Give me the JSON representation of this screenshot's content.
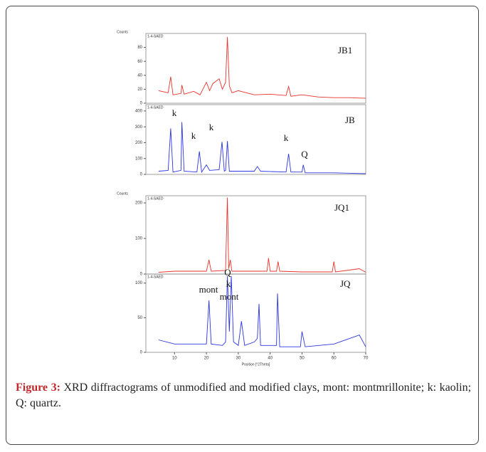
{
  "chart_data": [
    {
      "type": "line",
      "ylabel": "Counts",
      "label": "JB1",
      "x": [
        5,
        8,
        8.8,
        9.5,
        12,
        12.3,
        13,
        16,
        18,
        20,
        21,
        22,
        24,
        25,
        26,
        26.6,
        27.2,
        28,
        30,
        35,
        40,
        45,
        45.8,
        46.5,
        50,
        55,
        60,
        65,
        70
      ],
      "series": [
        {
          "name": "1-4-SAED",
          "color": "#e8322b",
          "values": [
            18,
            15,
            38,
            12,
            14,
            26,
            13,
            17,
            12,
            30,
            18,
            28,
            35,
            20,
            30,
            95,
            25,
            15,
            18,
            12,
            13,
            11,
            24,
            10,
            12,
            9,
            8,
            8,
            7
          ]
        }
      ],
      "xlim": [
        1,
        70
      ],
      "ylim": [
        0,
        100
      ],
      "yticks": [
        0,
        20,
        40,
        60,
        80
      ],
      "annotations": []
    },
    {
      "type": "line",
      "label": "JB",
      "x": [
        5,
        8,
        8.8,
        9.5,
        12,
        12.3,
        13,
        17,
        17.8,
        18.5,
        20,
        21,
        24,
        24.9,
        25.6,
        26,
        26.6,
        27.2,
        30,
        35,
        36,
        37,
        45,
        45.8,
        46.5,
        50,
        50.4,
        51,
        60,
        70
      ],
      "series": [
        {
          "name": "1-4-SAED",
          "color": "#2b35e0",
          "values": [
            20,
            25,
            290,
            15,
            25,
            330,
            20,
            15,
            145,
            15,
            60,
            25,
            30,
            205,
            20,
            25,
            210,
            20,
            20,
            20,
            50,
            20,
            15,
            130,
            15,
            15,
            60,
            10,
            10,
            5
          ]
        }
      ],
      "xlim": [
        1,
        70
      ],
      "ylim": [
        0,
        440
      ],
      "yticks": [
        0,
        100,
        200,
        300,
        400
      ],
      "annotations": [
        "k",
        "k",
        "k",
        "k",
        "Q"
      ]
    },
    {
      "type": "line",
      "ylabel": "Counts",
      "label": "JQ1",
      "x": [
        5,
        10,
        20,
        20.8,
        21.5,
        26,
        26.6,
        27,
        27.5,
        28,
        35,
        39,
        39.5,
        40,
        42,
        42.5,
        43,
        50,
        59.5,
        60,
        60.5,
        68,
        70
      ],
      "series": [
        {
          "name": "1-4-SAED",
          "color": "#e8322b",
          "values": [
            5,
            8,
            8,
            40,
            8,
            10,
            215,
            15,
            40,
            8,
            8,
            8,
            45,
            8,
            8,
            35,
            8,
            6,
            6,
            35,
            6,
            15,
            5
          ]
        }
      ],
      "xlim": [
        1,
        70
      ],
      "ylim": [
        0,
        220
      ],
      "yticks": [
        0,
        100,
        200
      ],
      "annotations": []
    },
    {
      "type": "line",
      "label": "JQ",
      "xlabel": "Position [°2Theta]",
      "x": [
        5,
        10,
        15,
        20,
        20.8,
        21.5,
        25,
        26,
        26.6,
        27.2,
        27.8,
        28.5,
        30,
        31,
        32,
        35,
        36,
        36.5,
        37,
        40,
        42,
        42.3,
        43,
        49.5,
        50,
        51,
        60,
        68,
        70
      ],
      "series": [
        {
          "name": "1-4-SAED",
          "color": "#2b35e0",
          "values": [
            18,
            12,
            12,
            12,
            75,
            12,
            10,
            15,
            110,
            30,
            110,
            15,
            10,
            45,
            10,
            15,
            20,
            70,
            10,
            10,
            10,
            85,
            8,
            8,
            30,
            8,
            12,
            25,
            8
          ]
        }
      ],
      "xlim": [
        1,
        70
      ],
      "ylim": [
        0,
        113
      ],
      "yticks": [
        0,
        50,
        100
      ],
      "xticks": [
        10,
        20,
        30,
        40,
        50,
        60,
        70
      ],
      "annotations": [
        "mont",
        "Q",
        "k",
        "mont"
      ]
    }
  ],
  "caption": {
    "label": "Figure 3:",
    "text": "XRD diffractograms of unmodified and modified clays, mont: montmrillonite; k: kaolin; Q: quartz."
  }
}
